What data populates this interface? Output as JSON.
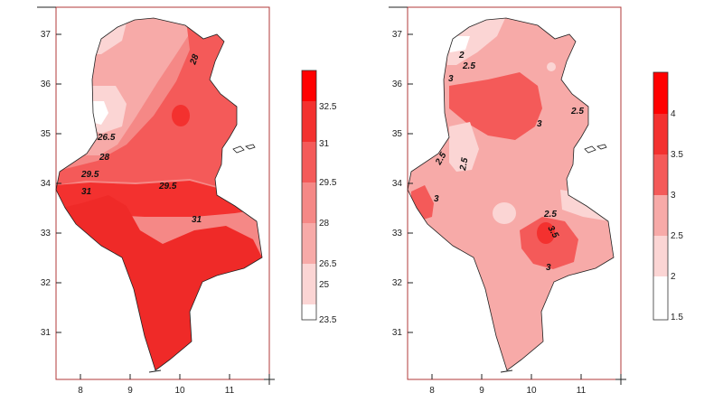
{
  "maps": [
    {
      "id": "left",
      "y_ticks": [
        "37",
        "36",
        "35",
        "34",
        "33",
        "32",
        "31"
      ],
      "x_ticks": [
        "8",
        "9",
        "10",
        "11"
      ],
      "contour_labels": [
        "28",
        "26.5",
        "28",
        "29.5",
        "29.5",
        "31",
        "31"
      ],
      "legend": {
        "labels": [
          "32.5",
          "31",
          "29.5",
          "28",
          "26.5",
          "25",
          "23.5"
        ],
        "colors": [
          "#ff0000",
          "#f3312f",
          "#f45a59",
          "#f58886",
          "#f7aaa8",
          "#fbd5d4",
          "#ffffff"
        ]
      }
    },
    {
      "id": "right",
      "y_ticks": [
        "37",
        "36",
        "35",
        "34",
        "33",
        "32",
        "31"
      ],
      "x_ticks": [
        "8",
        "9",
        "10",
        "11"
      ],
      "contour_labels": [
        "2",
        "2.5",
        "3",
        "2.5",
        "3",
        "2.5",
        "2.5",
        "3",
        "2.5",
        "3.5",
        "3"
      ],
      "legend": {
        "labels": [
          "4",
          "3.5",
          "3",
          "2.5",
          "2",
          "1.5"
        ],
        "colors": [
          "#ff0000",
          "#f3312f",
          "#f45a59",
          "#f7aaa8",
          "#fbd5d4",
          "#ffffff"
        ]
      }
    }
  ]
}
